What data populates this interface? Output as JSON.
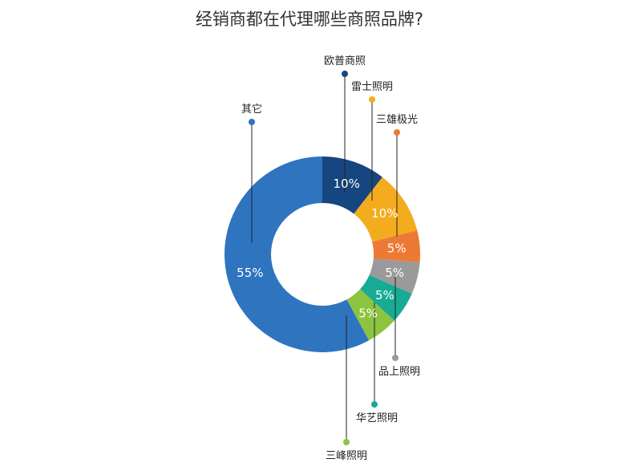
{
  "chart_data": {
    "type": "pie",
    "title": "经销商都在代理哪些商照品牌?",
    "categories": [
      "欧普商照",
      "雷士照明",
      "三雄极光",
      "品上照明",
      "华艺照明",
      "三峰照明",
      "其它"
    ],
    "values": [
      10,
      10,
      5,
      5,
      5,
      5,
      55
    ],
    "value_labels": [
      "10%",
      "10%",
      "5%",
      "5%",
      "5%",
      "5%",
      "55%"
    ],
    "colors": [
      "#16467f",
      "#f4ac1f",
      "#ed7a34",
      "#9a9a9a",
      "#17ab96",
      "#8cc43f",
      "#2f74bf"
    ],
    "donut": true,
    "legend": "callout labels"
  }
}
